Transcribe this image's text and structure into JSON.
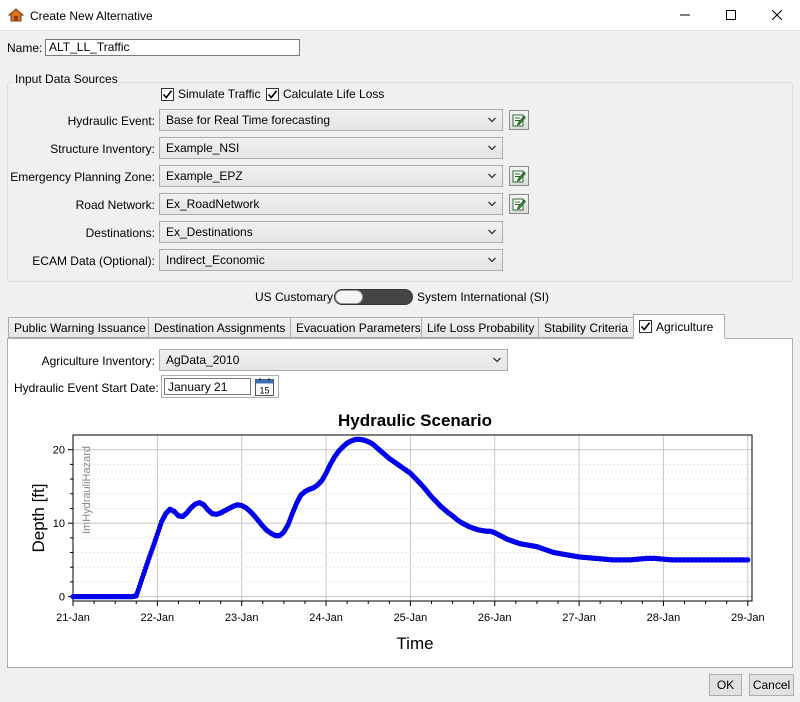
{
  "window": {
    "title": "Create New Alternative",
    "minimize_label": "minimize",
    "maximize_label": "maximize",
    "close_label": "close"
  },
  "name_field": {
    "label": "Name:",
    "value": "ALT_LL_Traffic"
  },
  "input_sources": {
    "legend": "Input Data Sources",
    "simulate_traffic": {
      "label": "Simulate Traffic",
      "checked": true
    },
    "calculate_life_loss": {
      "label": "Calculate Life Loss",
      "checked": true
    },
    "rows": [
      {
        "label": "Hydraulic Event:",
        "value": "Base for Real Time forecasting",
        "has_edit": true
      },
      {
        "label": "Structure Inventory:",
        "value": "Example_NSI",
        "has_edit": false
      },
      {
        "label": "Emergency Planning Zone:",
        "value": "Example_EPZ",
        "has_edit": true
      },
      {
        "label": "Road Network:",
        "value": "Ex_RoadNetwork",
        "has_edit": true
      },
      {
        "label": "Destinations:",
        "value": "Ex_Destinations",
        "has_edit": false
      },
      {
        "label": "ECAM Data (Optional):",
        "value": "Indirect_Economic",
        "has_edit": false
      }
    ]
  },
  "units": {
    "left_label": "US Customary",
    "right_label": "System International (SI)",
    "selected": "US Customary"
  },
  "tabs": [
    {
      "label": "Public Warning Issuance"
    },
    {
      "label": "Destination Assignments"
    },
    {
      "label": "Evacuation Parameters"
    },
    {
      "label": "Life Loss Probability"
    },
    {
      "label": "Stability Criteria"
    },
    {
      "label": "Agriculture",
      "checked": true,
      "active": true
    }
  ],
  "agriculture": {
    "inventory_label": "Agriculture Inventory:",
    "inventory_value": "AgData_2010",
    "start_date_label": "Hydraulic Event Start Date:",
    "start_date_value": "January 21",
    "calendar_day": "15"
  },
  "chart_data": {
    "type": "scatter",
    "title": "Hydraulic Scenario",
    "xlabel": "Time",
    "ylabel": "Depth [ft]",
    "overlay_text": "ImHydrauliHazard",
    "x_ticks": [
      "21-Jan",
      "22-Jan",
      "23-Jan",
      "24-Jan",
      "25-Jan",
      "26-Jan",
      "27-Jan",
      "28-Jan",
      "29-Jan"
    ],
    "y_ticks": [
      "0",
      "10",
      "20"
    ],
    "xlim": [
      21.0,
      29.05
    ],
    "ylim": [
      -0.6,
      22.0
    ],
    "grid": true,
    "series": [
      {
        "color": "#0000ee",
        "x": [
          21.0,
          21.3,
          21.6,
          21.7,
          21.75,
          21.8,
          21.85,
          21.9,
          21.95,
          22.0,
          22.05,
          22.1,
          22.15,
          22.2,
          22.25,
          22.3,
          22.35,
          22.4,
          22.45,
          22.5,
          22.55,
          22.6,
          22.65,
          22.7,
          22.75,
          22.8,
          22.85,
          22.9,
          22.95,
          23.0,
          23.05,
          23.1,
          23.15,
          23.2,
          23.25,
          23.3,
          23.35,
          23.4,
          23.45,
          23.5,
          23.55,
          23.6,
          23.65,
          23.7,
          23.75,
          23.8,
          23.85,
          23.9,
          23.95,
          24.0,
          24.05,
          24.1,
          24.15,
          24.2,
          24.25,
          24.3,
          24.35,
          24.4,
          24.45,
          24.5,
          24.55,
          24.6,
          24.65,
          24.7,
          24.75,
          24.8,
          24.85,
          24.9,
          24.95,
          25.0,
          25.05,
          25.1,
          25.15,
          25.2,
          25.25,
          25.3,
          25.35,
          25.4,
          25.45,
          25.5,
          25.55,
          25.6,
          25.65,
          25.7,
          25.75,
          25.8,
          25.85,
          25.9,
          25.95,
          26.0,
          26.05,
          26.1,
          26.15,
          26.2,
          26.25,
          26.3,
          26.35,
          26.4,
          26.45,
          26.5,
          26.55,
          26.6,
          26.65,
          26.7,
          26.75,
          26.8,
          26.85,
          26.9,
          26.95,
          27.0,
          27.1,
          27.2,
          27.3,
          27.4,
          27.5,
          27.6,
          27.7,
          27.8,
          27.9,
          28.0,
          28.1,
          28.2,
          28.3,
          28.4,
          28.5,
          28.6,
          28.7,
          28.8,
          28.9,
          29.0
        ],
        "y": [
          0,
          0,
          0,
          0,
          0.1,
          1.8,
          3.5,
          5.2,
          6.8,
          8.5,
          10.2,
          11.3,
          11.9,
          11.6,
          11.0,
          10.9,
          11.4,
          12.1,
          12.6,
          12.8,
          12.5,
          11.8,
          11.3,
          11.2,
          11.4,
          11.7,
          12.0,
          12.3,
          12.5,
          12.4,
          12.1,
          11.6,
          11.0,
          10.3,
          9.6,
          9.0,
          8.6,
          8.3,
          8.3,
          8.8,
          9.8,
          11.3,
          12.7,
          13.8,
          14.3,
          14.6,
          14.8,
          15.2,
          15.8,
          16.8,
          18.0,
          19.0,
          19.8,
          20.4,
          20.9,
          21.2,
          21.4,
          21.4,
          21.3,
          21.1,
          20.8,
          20.3,
          19.8,
          19.3,
          18.8,
          18.4,
          18.0,
          17.6,
          17.2,
          16.8,
          16.2,
          15.6,
          15.0,
          14.3,
          13.6,
          13.0,
          12.4,
          11.9,
          11.4,
          11.0,
          10.5,
          10.1,
          9.8,
          9.5,
          9.3,
          9.1,
          9.0,
          8.9,
          8.9,
          8.7,
          8.4,
          8.1,
          7.8,
          7.6,
          7.4,
          7.2,
          7.1,
          7.0,
          6.9,
          6.8,
          6.6,
          6.4,
          6.2,
          6.0,
          5.9,
          5.8,
          5.7,
          5.6,
          5.5,
          5.4,
          5.3,
          5.2,
          5.1,
          5.0,
          5.0,
          5.0,
          5.1,
          5.2,
          5.2,
          5.1,
          5.0,
          5.0,
          5.0,
          5.0,
          5.0,
          5.0,
          5.0,
          5.0,
          5.0,
          5.0
        ]
      }
    ]
  },
  "footer": {
    "ok_label": "OK",
    "cancel_label": "Cancel"
  }
}
